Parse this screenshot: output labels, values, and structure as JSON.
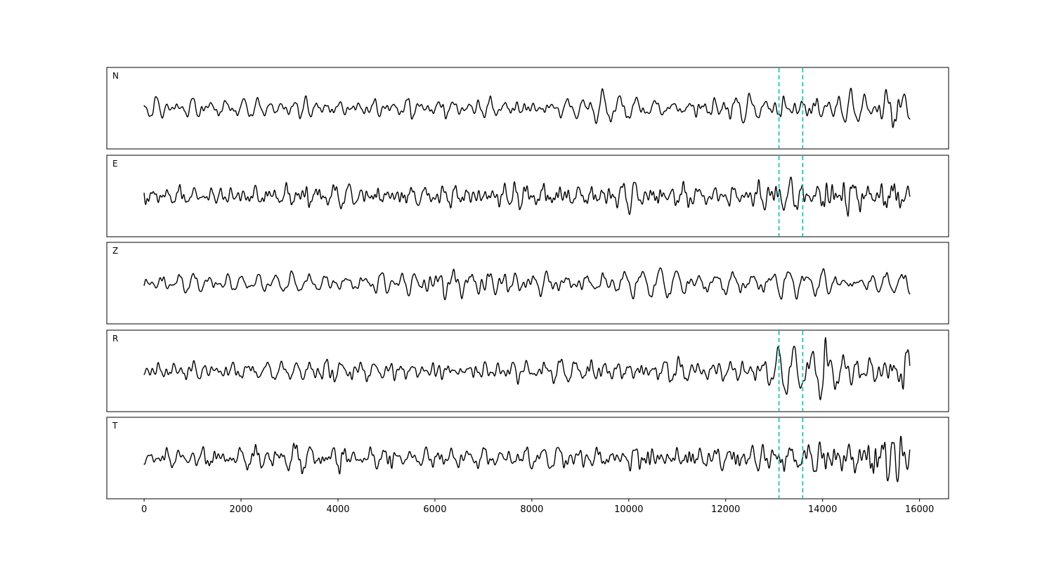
{
  "figure": {
    "background": "#ffffff"
  },
  "chart_data": {
    "type": "line",
    "title": "",
    "xlabel": "",
    "ylabel": "",
    "grid": false,
    "legend": "none",
    "xlim": [
      -770,
      16600
    ],
    "x_ticks": [
      0,
      2000,
      4000,
      6000,
      8000,
      10000,
      12000,
      14000,
      16000
    ],
    "sample_range": [
      0,
      15800
    ],
    "trace_color": "#000000",
    "marker_lines": {
      "x_values": [
        13100,
        13590
      ],
      "color": "#00bfbf",
      "style": "dashed"
    },
    "channels": [
      {
        "label": "N",
        "markers": true,
        "seed": 11,
        "envelope": [
          [
            0,
            0.85
          ],
          [
            4000,
            0.9
          ],
          [
            8000,
            1.0
          ],
          [
            12000,
            1.15
          ],
          [
            13000,
            1.3
          ],
          [
            14200,
            1.25
          ],
          [
            15000,
            1.0
          ],
          [
            15200,
            2.1
          ],
          [
            15600,
            2.3
          ],
          [
            15800,
            1.4
          ]
        ]
      },
      {
        "label": "E",
        "markers": true,
        "seed": 22,
        "envelope": [
          [
            0,
            0.9
          ],
          [
            6000,
            0.95
          ],
          [
            9000,
            1.05
          ],
          [
            12500,
            1.0
          ],
          [
            13200,
            1.55
          ],
          [
            13800,
            1.2
          ],
          [
            14300,
            2.0
          ],
          [
            14800,
            1.35
          ],
          [
            15300,
            1.6
          ],
          [
            15800,
            1.2
          ]
        ]
      },
      {
        "label": "Z",
        "markers": false,
        "seed": 33,
        "envelope": [
          [
            0,
            0.9
          ],
          [
            5600,
            0.95
          ],
          [
            5900,
            1.9
          ],
          [
            7000,
            1.85
          ],
          [
            7400,
            1.25
          ],
          [
            9000,
            1.1
          ],
          [
            10400,
            1.35
          ],
          [
            11000,
            1.1
          ],
          [
            15800,
            1.1
          ]
        ]
      },
      {
        "label": "R",
        "markers": true,
        "seed": 44,
        "envelope": [
          [
            0,
            0.9
          ],
          [
            6000,
            1.0
          ],
          [
            9000,
            1.1
          ],
          [
            12000,
            1.2
          ],
          [
            13100,
            1.6
          ],
          [
            13600,
            1.4
          ],
          [
            14200,
            1.8
          ],
          [
            15000,
            1.5
          ],
          [
            15800,
            1.7
          ]
        ]
      },
      {
        "label": "T",
        "markers": true,
        "seed": 55,
        "envelope": [
          [
            0,
            0.9
          ],
          [
            6500,
            1.0
          ],
          [
            9000,
            1.1
          ],
          [
            12000,
            1.1
          ],
          [
            13000,
            1.35
          ],
          [
            14500,
            1.2
          ],
          [
            15100,
            2.2
          ],
          [
            15500,
            2.3
          ],
          [
            15800,
            1.5
          ]
        ]
      }
    ]
  }
}
